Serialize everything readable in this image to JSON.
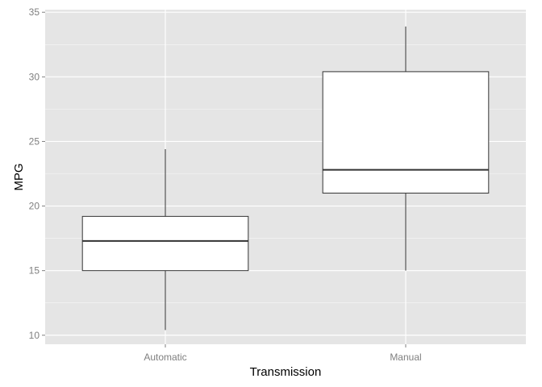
{
  "chart_data": {
    "type": "box",
    "title": "",
    "xlabel": "Transmission",
    "ylabel": "MPG",
    "categories": [
      "Automatic",
      "Manual"
    ],
    "ylim": [
      9.3,
      35.2
    ],
    "yticks": [
      10,
      15,
      20,
      25,
      30,
      35
    ],
    "grid": true,
    "legend": "none",
    "boxes": [
      {
        "name": "Automatic",
        "min": 10.4,
        "q1": 15.0,
        "median": 17.3,
        "q3": 19.2,
        "max": 24.4
      },
      {
        "name": "Manual",
        "min": 15.0,
        "q1": 21.0,
        "median": 22.8,
        "q3": 30.4,
        "max": 33.9
      }
    ],
    "colors": {
      "panel_background": "#e5e5e5",
      "gridline": "#ffffff",
      "box_fill": "#ffffff",
      "box_stroke": "#333333",
      "tick_label": "#7f7f7f"
    }
  }
}
